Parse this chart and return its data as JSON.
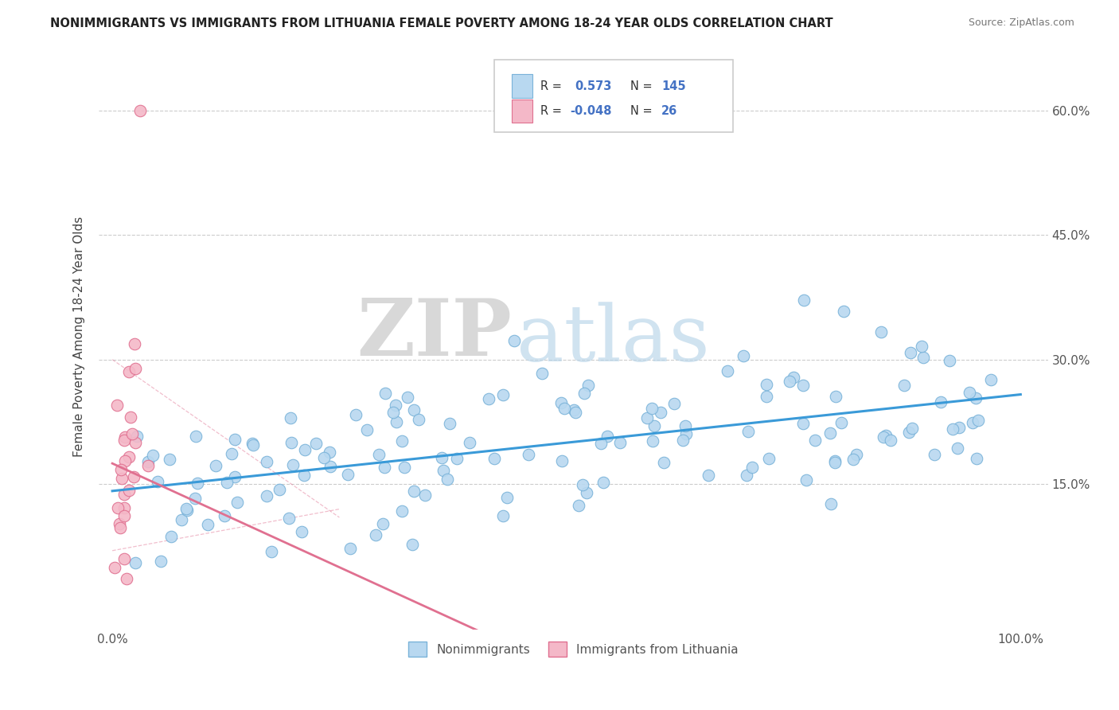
{
  "title": "NONIMMIGRANTS VS IMMIGRANTS FROM LITHUANIA FEMALE POVERTY AMONG 18-24 YEAR OLDS CORRELATION CHART",
  "source": "Source: ZipAtlas.com",
  "ylabel": "Female Poverty Among 18-24 Year Olds",
  "R_nonimm": 0.573,
  "N_nonimm": 145,
  "R_imm": -0.048,
  "N_imm": 26,
  "nonimm_color": "#b8d8f0",
  "nonimm_edge": "#7ab3d9",
  "imm_color": "#f4b8c8",
  "imm_edge": "#e07090",
  "nonimm_line_color": "#3a9ad8",
  "imm_line_color": "#e07090",
  "legend_label_nonimm": "Nonimmigrants",
  "legend_label_imm": "Immigrants from Lithuania",
  "legend_r_color": "#4472c4",
  "legend_n_color": "#4472c4",
  "grid_color": "#cccccc",
  "watermark_zip_color": "#c8c8c8",
  "watermark_atlas_color": "#b8d4e8"
}
